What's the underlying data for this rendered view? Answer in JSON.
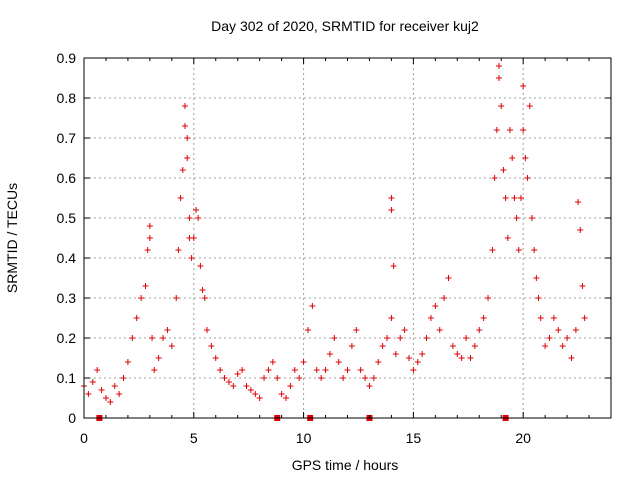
{
  "chart_data": {
    "type": "scatter",
    "title": "Day 302 of 2020, SRMTID for receiver kuj2",
    "xlabel": "GPS time / hours",
    "ylabel": "SRMTID / TECUs",
    "xlim": [
      0,
      24
    ],
    "ylim": [
      0,
      0.9
    ],
    "xticks": [
      0,
      5,
      10,
      15,
      20
    ],
    "xtick_labels": [
      "0",
      "5",
      "10",
      "15",
      "20"
    ],
    "yticks": [
      0,
      0.1,
      0.2,
      0.3,
      0.4,
      0.5,
      0.6,
      0.7,
      0.8,
      0.9
    ],
    "ytick_labels": [
      "0",
      "0.1",
      "0.2",
      "0.3",
      "0.4",
      "0.5",
      "0.6",
      "0.7",
      "0.8",
      "0.9"
    ],
    "grid": true,
    "marker": "+",
    "color": "#e00000",
    "series": [
      {
        "name": "kuj2",
        "x": [
          0.0,
          0.2,
          0.4,
          0.6,
          0.8,
          1.0,
          1.2,
          1.4,
          1.6,
          1.8,
          2.0,
          2.2,
          2.4,
          2.6,
          2.8,
          2.9,
          3.0,
          3.0,
          3.1,
          3.2,
          3.4,
          3.6,
          3.8,
          4.0,
          4.2,
          4.3,
          4.4,
          4.5,
          4.6,
          4.6,
          4.7,
          4.7,
          4.8,
          4.8,
          4.9,
          5.0,
          5.1,
          5.2,
          5.3,
          5.4,
          5.5,
          5.6,
          5.8,
          6.0,
          6.2,
          6.4,
          6.6,
          6.8,
          7.0,
          7.2,
          7.4,
          7.6,
          7.8,
          8.0,
          8.2,
          8.4,
          8.6,
          8.8,
          9.0,
          9.2,
          9.4,
          9.6,
          9.8,
          10.0,
          10.2,
          10.4,
          10.6,
          10.8,
          11.0,
          11.2,
          11.4,
          11.6,
          11.8,
          12.0,
          12.2,
          12.4,
          12.6,
          12.8,
          13.0,
          13.2,
          13.4,
          13.6,
          13.8,
          14.0,
          14.0,
          14.0,
          14.1,
          14.2,
          14.4,
          14.6,
          14.8,
          15.0,
          15.2,
          15.4,
          15.6,
          15.8,
          16.0,
          16.2,
          16.4,
          16.6,
          16.8,
          17.0,
          17.2,
          17.4,
          17.6,
          17.8,
          18.0,
          18.2,
          18.4,
          18.6,
          18.7,
          18.8,
          18.9,
          18.9,
          19.0,
          19.1,
          19.2,
          19.3,
          19.4,
          19.5,
          19.6,
          19.7,
          19.8,
          19.9,
          20.0,
          20.0,
          20.1,
          20.2,
          20.3,
          20.4,
          20.5,
          20.6,
          20.7,
          20.8,
          21.0,
          21.2,
          21.4,
          21.6,
          21.8,
          22.0,
          22.2,
          22.4,
          22.5,
          22.6,
          22.7,
          22.8
        ],
        "y": [
          0.08,
          0.06,
          0.09,
          0.12,
          0.07,
          0.05,
          0.04,
          0.08,
          0.06,
          0.1,
          0.14,
          0.2,
          0.25,
          0.3,
          0.33,
          0.42,
          0.48,
          0.45,
          0.2,
          0.12,
          0.15,
          0.2,
          0.22,
          0.18,
          0.3,
          0.42,
          0.55,
          0.62,
          0.73,
          0.78,
          0.7,
          0.65,
          0.5,
          0.45,
          0.4,
          0.45,
          0.52,
          0.5,
          0.38,
          0.32,
          0.3,
          0.22,
          0.18,
          0.15,
          0.12,
          0.1,
          0.09,
          0.08,
          0.11,
          0.12,
          0.08,
          0.07,
          0.06,
          0.05,
          0.1,
          0.12,
          0.14,
          0.1,
          0.06,
          0.05,
          0.08,
          0.12,
          0.1,
          0.14,
          0.22,
          0.28,
          0.12,
          0.1,
          0.12,
          0.16,
          0.2,
          0.14,
          0.1,
          0.12,
          0.18,
          0.22,
          0.12,
          0.1,
          0.08,
          0.1,
          0.14,
          0.18,
          0.2,
          0.25,
          0.52,
          0.55,
          0.38,
          0.16,
          0.2,
          0.22,
          0.15,
          0.12,
          0.14,
          0.16,
          0.2,
          0.25,
          0.28,
          0.22,
          0.3,
          0.35,
          0.18,
          0.16,
          0.15,
          0.2,
          0.15,
          0.18,
          0.22,
          0.25,
          0.3,
          0.42,
          0.6,
          0.72,
          0.85,
          0.88,
          0.78,
          0.62,
          0.55,
          0.45,
          0.72,
          0.65,
          0.55,
          0.5,
          0.42,
          0.55,
          0.83,
          0.72,
          0.65,
          0.6,
          0.78,
          0.5,
          0.42,
          0.35,
          0.3,
          0.25,
          0.18,
          0.2,
          0.25,
          0.22,
          0.18,
          0.2,
          0.15,
          0.22,
          0.54,
          0.47,
          0.33,
          0.25
        ]
      }
    ],
    "missing_marks_x": [
      0.7,
      8.8,
      10.3,
      13.0,
      19.2
    ]
  }
}
